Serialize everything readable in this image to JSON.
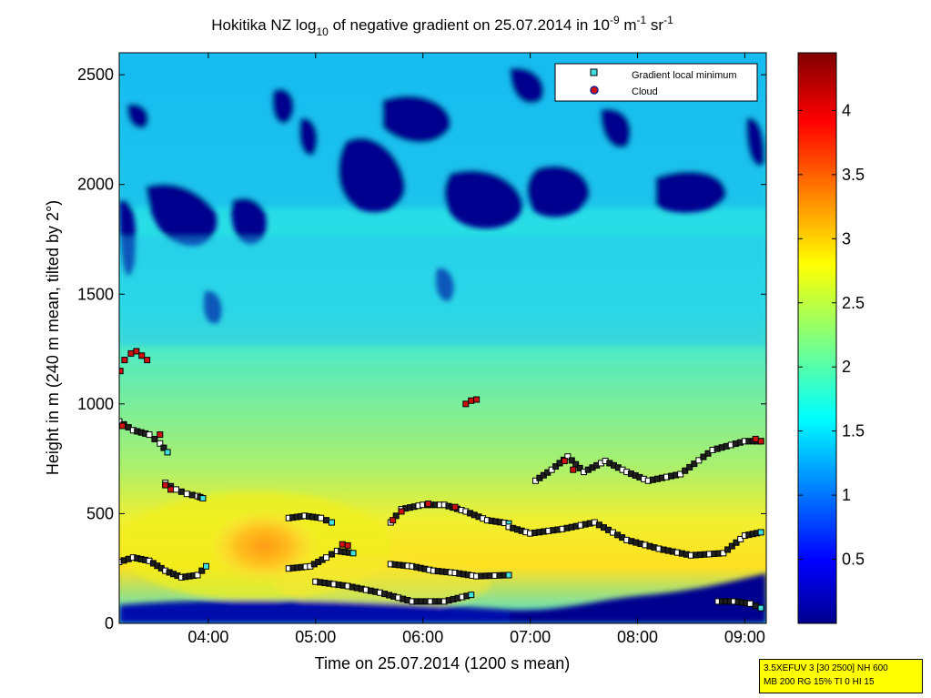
{
  "chart_data": {
    "type": "heatmap",
    "title": {
      "prefix": "Hokitika NZ log",
      "prefix_sub": "10",
      "middle": " of negative gradient on 25.07.2014 in 10",
      "exp1": "-9",
      "mid2": " m",
      "exp2": "-1",
      "mid3": " sr",
      "exp3": "-1"
    },
    "xlabel": "Time on 25.07.2014 (1200 s mean)",
    "ylabel": "Height in m (240 m mean, tilted by 2°)",
    "xlim": [
      3.17,
      9.2
    ],
    "ylim": [
      0,
      2600
    ],
    "x_ticks": [
      {
        "value": 4,
        "label": "04:00"
      },
      {
        "value": 5,
        "label": "05:00"
      },
      {
        "value": 6,
        "label": "06:00"
      },
      {
        "value": 7,
        "label": "07:00"
      },
      {
        "value": 8,
        "label": "08:00"
      },
      {
        "value": 9,
        "label": "09:00"
      }
    ],
    "y_ticks": [
      {
        "value": 0,
        "label": "0"
      },
      {
        "value": 500,
        "label": "500"
      },
      {
        "value": 1000,
        "label": "1000"
      },
      {
        "value": 1500,
        "label": "1500"
      },
      {
        "value": 2000,
        "label": "2000"
      },
      {
        "value": 2500,
        "label": "2500"
      }
    ],
    "colorbar": {
      "range": [
        0,
        4.45
      ],
      "ticks": [
        {
          "value": 0.5,
          "label": "0.5"
        },
        {
          "value": 1,
          "label": "1"
        },
        {
          "value": 1.5,
          "label": "1.5"
        },
        {
          "value": 2,
          "label": "2"
        },
        {
          "value": 2.5,
          "label": "2.5"
        },
        {
          "value": 3,
          "label": "3"
        },
        {
          "value": 3.5,
          "label": "3.5"
        },
        {
          "value": 4,
          "label": "4"
        }
      ]
    },
    "legend": {
      "placement": "top-right",
      "entries": [
        {
          "label": "Gradient local minimum",
          "color": "#40e0e0"
        },
        {
          "label": "Cloud",
          "color": "#d01010"
        }
      ]
    },
    "series": [
      {
        "name": "Gradient local minimum",
        "layers": [
          {
            "x": [
              3.17,
              3.3,
              3.45,
              3.6,
              3.75,
              3.9,
              3.98
            ],
            "y": [
              280,
              300,
              285,
              240,
              210,
              220,
              260
            ]
          },
          {
            "x": [
              3.17,
              3.3,
              3.45,
              3.55,
              3.62
            ],
            "y": [
              920,
              880,
              860,
              820,
              780
            ]
          },
          {
            "x": [
              3.6,
              3.7,
              3.8,
              3.9,
              3.95
            ],
            "y": [
              640,
              610,
              590,
              580,
              570
            ]
          },
          {
            "x": [
              4.75,
              4.9,
              5.05,
              5.15
            ],
            "y": [
              480,
              490,
              480,
              460
            ]
          },
          {
            "x": [
              4.75,
              4.95,
              5.1,
              5.2,
              5.35
            ],
            "y": [
              250,
              260,
              300,
              330,
              320
            ]
          },
          {
            "x": [
              5.0,
              5.3,
              5.6,
              5.9,
              6.2,
              6.45
            ],
            "y": [
              190,
              170,
              140,
              100,
              100,
              130
            ]
          },
          {
            "x": [
              5.7,
              5.9,
              6.1,
              6.3,
              6.5,
              6.8
            ],
            "y": [
              270,
              260,
              240,
              230,
              215,
              220
            ]
          },
          {
            "x": [
              5.7,
              5.8,
              6.0,
              6.2,
              6.4,
              6.6,
              6.8
            ],
            "y": [
              460,
              520,
              540,
              540,
              510,
              470,
              455
            ]
          },
          {
            "x": [
              6.8,
              7.0,
              7.3,
              7.6,
              7.9,
              8.2,
              8.5,
              8.8,
              9.0,
              9.15
            ],
            "y": [
              440,
              410,
              430,
              460,
              380,
              340,
              310,
              320,
              400,
              415
            ]
          },
          {
            "x": [
              7.05,
              7.2,
              7.35,
              7.5,
              7.7,
              7.9,
              8.1,
              8.4,
              8.7,
              9.0,
              9.15
            ],
            "y": [
              650,
              700,
              760,
              690,
              740,
              690,
              650,
              680,
              790,
              830,
              830
            ]
          },
          {
            "x": [
              8.75,
              8.9,
              9.05,
              9.15
            ],
            "y": [
              100,
              100,
              90,
              70
            ]
          }
        ]
      },
      {
        "name": "Cloud",
        "points": [
          {
            "x": 3.18,
            "y": 1150
          },
          {
            "x": 3.22,
            "y": 1200
          },
          {
            "x": 3.28,
            "y": 1230
          },
          {
            "x": 3.33,
            "y": 1240
          },
          {
            "x": 3.38,
            "y": 1220
          },
          {
            "x": 3.43,
            "y": 1200
          },
          {
            "x": 6.4,
            "y": 1000
          },
          {
            "x": 6.45,
            "y": 1015
          },
          {
            "x": 6.5,
            "y": 1020
          },
          {
            "x": 3.6,
            "y": 630
          },
          {
            "x": 3.65,
            "y": 610
          },
          {
            "x": 3.2,
            "y": 900
          },
          {
            "x": 3.55,
            "y": 860
          },
          {
            "x": 5.72,
            "y": 470
          },
          {
            "x": 5.8,
            "y": 510
          },
          {
            "x": 6.05,
            "y": 545
          },
          {
            "x": 6.3,
            "y": 530
          },
          {
            "x": 5.25,
            "y": 360
          },
          {
            "x": 5.3,
            "y": 355
          },
          {
            "x": 7.32,
            "y": 740
          },
          {
            "x": 7.4,
            "y": 700
          },
          {
            "x": 9.15,
            "y": 830
          },
          {
            "x": 9.1,
            "y": 840
          }
        ]
      }
    ]
  },
  "info_box": {
    "line1": "3.5XEFUV 3 [30 2500] NH 600",
    "line2": "MB 200 RG 15% TI 0 HI 15"
  },
  "colors": {
    "background_field": "#00c8ff",
    "dark_blue": "#00008f",
    "yellow": "#f8f800",
    "orange": "#ff9000",
    "marker_edge": "#000000"
  }
}
